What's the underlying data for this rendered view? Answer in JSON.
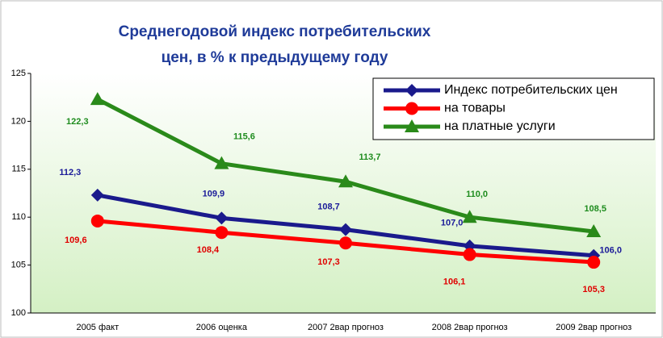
{
  "chart_data": {
    "type": "line",
    "title": "Среднегодовой индекс потребительских цен, в % к предыдущему году",
    "categories": [
      "2005 факт",
      "2006 оценка",
      "2007 2вар прогноз",
      "2008 2вар прогноз",
      "2009 2вар прогноз"
    ],
    "series": [
      {
        "name": "Индекс потребительских цен",
        "color": "#1a1a8c",
        "marker": "diamond",
        "values": [
          112.3,
          109.9,
          108.7,
          107.0,
          106.0
        ],
        "value_labels": [
          "112,3",
          "109,9",
          "108,7",
          "107,0",
          "106,0"
        ]
      },
      {
        "name": "на товары",
        "color": "#ff0000",
        "marker": "circle",
        "values": [
          109.6,
          108.4,
          107.3,
          106.1,
          105.3
        ],
        "value_labels": [
          "109,6",
          "108,4",
          "107,3",
          "106,1",
          "105,3"
        ]
      },
      {
        "name": "на платные услуги",
        "color": "#2a8a1a",
        "marker": "triangle",
        "values": [
          122.3,
          115.6,
          113.7,
          110.0,
          108.5
        ],
        "value_labels": [
          "122,3",
          "115,6",
          "113,7",
          "110,0",
          "108,5"
        ]
      }
    ],
    "ylim": [
      100,
      125
    ],
    "yticks": [
      100,
      105,
      110,
      115,
      120,
      125
    ],
    "legend": "upper right"
  }
}
